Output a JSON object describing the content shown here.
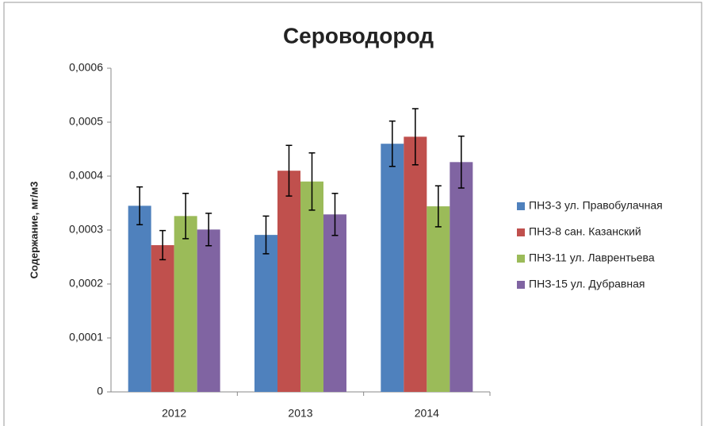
{
  "chart_data": {
    "type": "bar",
    "title": "Сероводород",
    "y_label": "Содержание, мг/м3",
    "categories": [
      "2012",
      "2013",
      "2014"
    ],
    "series": [
      {
        "name": "ПНЗ-3 ул. Правобулачная",
        "color": "#4f81bd",
        "values": [
          0.000345,
          0.000291,
          0.00046
        ],
        "errors": [
          3.5e-05,
          3.5e-05,
          4.2e-05
        ]
      },
      {
        "name": "ПНЗ-8 сан. Казанский",
        "color": "#c0504d",
        "values": [
          0.000272,
          0.00041,
          0.000473
        ],
        "errors": [
          2.7e-05,
          4.7e-05,
          5.2e-05
        ]
      },
      {
        "name": "ПНЗ-11 ул. Лаврентьева",
        "color": "#9bbb59",
        "values": [
          0.000326,
          0.00039,
          0.000344
        ],
        "errors": [
          4.2e-05,
          5.3e-05,
          3.8e-05
        ]
      },
      {
        "name": "ПНЗ-15 ул. Дубравная",
        "color": "#8064a2",
        "values": [
          0.000301,
          0.000329,
          0.000426
        ],
        "errors": [
          3e-05,
          3.9e-05,
          4.8e-05
        ]
      }
    ],
    "ylim": [
      0,
      0.0006
    ],
    "yticks": [
      0,
      {
        "value": 0.0001,
        "label": "0,0001"
      },
      {
        "value": 0.0002,
        "label": "0,0002"
      },
      {
        "value": 0.0003,
        "label": "0,0003"
      },
      {
        "value": 0.0004,
        "label": "0,0004"
      },
      {
        "value": 0.0005,
        "label": "0,0005"
      },
      {
        "value": 0.0006,
        "label": "0,0006"
      }
    ],
    "legend": "right"
  }
}
